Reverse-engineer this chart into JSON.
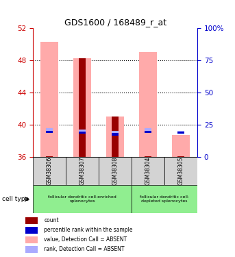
{
  "title": "GDS1600 / 168489_r_at",
  "samples": [
    "GSM38306",
    "GSM38307",
    "GSM38308",
    "GSM38304",
    "GSM38305"
  ],
  "ylim_left": [
    36,
    52
  ],
  "ylim_right": [
    0,
    100
  ],
  "yticks_left": [
    36,
    40,
    44,
    48,
    52
  ],
  "yticks_right": [
    0,
    25,
    50,
    75,
    100
  ],
  "pink_bar_bottom": [
    36,
    36,
    36,
    36,
    36
  ],
  "pink_bar_top": [
    50.3,
    48.3,
    41.0,
    49.0,
    38.7
  ],
  "dark_red_bottom": [
    36,
    36,
    36,
    36,
    36
  ],
  "dark_red_top": [
    36.05,
    48.3,
    41.0,
    36.05,
    36.05
  ],
  "lightblue_bottom": [
    39.0,
    38.85,
    38.65,
    39.0,
    38.85
  ],
  "lightblue_top": [
    39.55,
    39.4,
    39.25,
    39.55,
    39.25
  ],
  "blue_bottom": [
    39.0,
    38.85,
    38.65,
    39.0,
    38.85
  ],
  "blue_top": [
    39.25,
    39.1,
    38.95,
    39.25,
    39.1
  ],
  "cell_type_groups": [
    {
      "label": "follicular dendritic cell-enriched\nsplenocytes",
      "start": 0,
      "end": 2,
      "color": "#90EE90"
    },
    {
      "label": "follicular dendritic cell-\ndepleted splenocytes",
      "start": 3,
      "end": 4,
      "color": "#90EE90"
    }
  ],
  "bg_color": "#ffffff",
  "left_axis_color": "#cc0000",
  "right_axis_color": "#0000cc",
  "dark_red_color": "#990000",
  "pink_color": "#ffaaaa",
  "blue_color": "#0000cc",
  "lightblue_color": "#aaaaff",
  "sample_box_color": "#d3d3d3",
  "legend_items": [
    {
      "color": "#990000",
      "label": "count"
    },
    {
      "color": "#0000cc",
      "label": "percentile rank within the sample"
    },
    {
      "color": "#ffaaaa",
      "label": "value, Detection Call = ABSENT"
    },
    {
      "color": "#aaaaff",
      "label": "rank, Detection Call = ABSENT"
    }
  ]
}
